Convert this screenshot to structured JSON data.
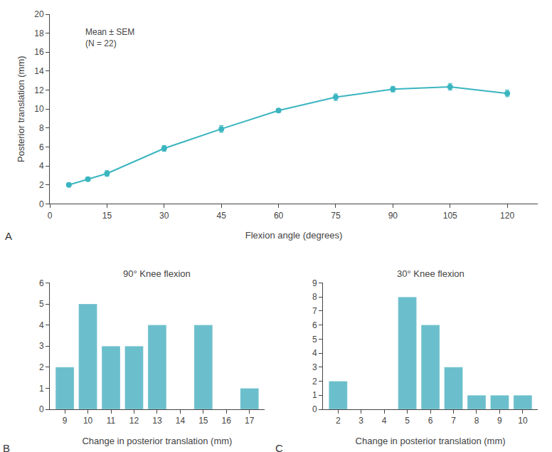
{
  "chart_data": [
    {
      "type": "line",
      "label": "A",
      "annotation": "Mean ± SEM\n(N = 22)",
      "x": [
        5,
        10,
        15,
        30,
        45,
        60,
        75,
        90,
        105,
        120
      ],
      "values": [
        2.0,
        2.6,
        3.2,
        5.85,
        7.9,
        9.85,
        11.25,
        12.1,
        12.35,
        11.65
      ],
      "yerr": [
        0.15,
        0.2,
        0.3,
        0.3,
        0.35,
        0.2,
        0.35,
        0.3,
        0.35,
        0.35
      ],
      "color": "#3ab5c0",
      "marker": "circle",
      "line_style": "solid",
      "xlabel": "Flexion angle (degrees)",
      "ylabel": "Posterior translation (mm)",
      "xlim": [
        0,
        128
      ],
      "ylim": [
        0,
        20
      ],
      "xticks": [
        0,
        15,
        30,
        45,
        60,
        75,
        90,
        105,
        120
      ],
      "yticks": [
        0,
        2,
        4,
        6,
        8,
        10,
        12,
        14,
        16,
        18,
        20
      ],
      "grid": false
    },
    {
      "type": "bar",
      "label": "B",
      "title": "90° Knee flexion",
      "x": [
        9,
        10,
        11,
        12,
        13,
        14,
        15,
        16,
        17
      ],
      "values": [
        2,
        5,
        3,
        3,
        4,
        0,
        4,
        0,
        1
      ],
      "color": "#6bbfcc",
      "xlabel": "Change in posterior translation (mm)",
      "xlim": [
        8.35,
        17.65
      ],
      "ylim": [
        0,
        6
      ],
      "xticks": [
        9,
        10,
        11,
        12,
        13,
        14,
        15,
        16,
        17
      ],
      "yticks": [
        0,
        1,
        2,
        3,
        4,
        5,
        6
      ],
      "grid": false
    },
    {
      "type": "bar",
      "label": "C",
      "title": "30° Knee flexion",
      "x": [
        2,
        3,
        4,
        5,
        6,
        7,
        8,
        9,
        10
      ],
      "values": [
        2,
        0,
        0,
        8,
        6,
        3,
        1,
        1,
        1
      ],
      "color": "#6bbfcc",
      "xlabel": "Change in posterior translation (mm)",
      "xlim": [
        1.35,
        10.65
      ],
      "ylim": [
        0,
        9
      ],
      "xticks": [
        2,
        3,
        4,
        5,
        6,
        7,
        8,
        9,
        10
      ],
      "yticks": [
        0,
        1,
        2,
        3,
        4,
        5,
        6,
        7,
        8,
        9
      ],
      "grid": false
    }
  ]
}
